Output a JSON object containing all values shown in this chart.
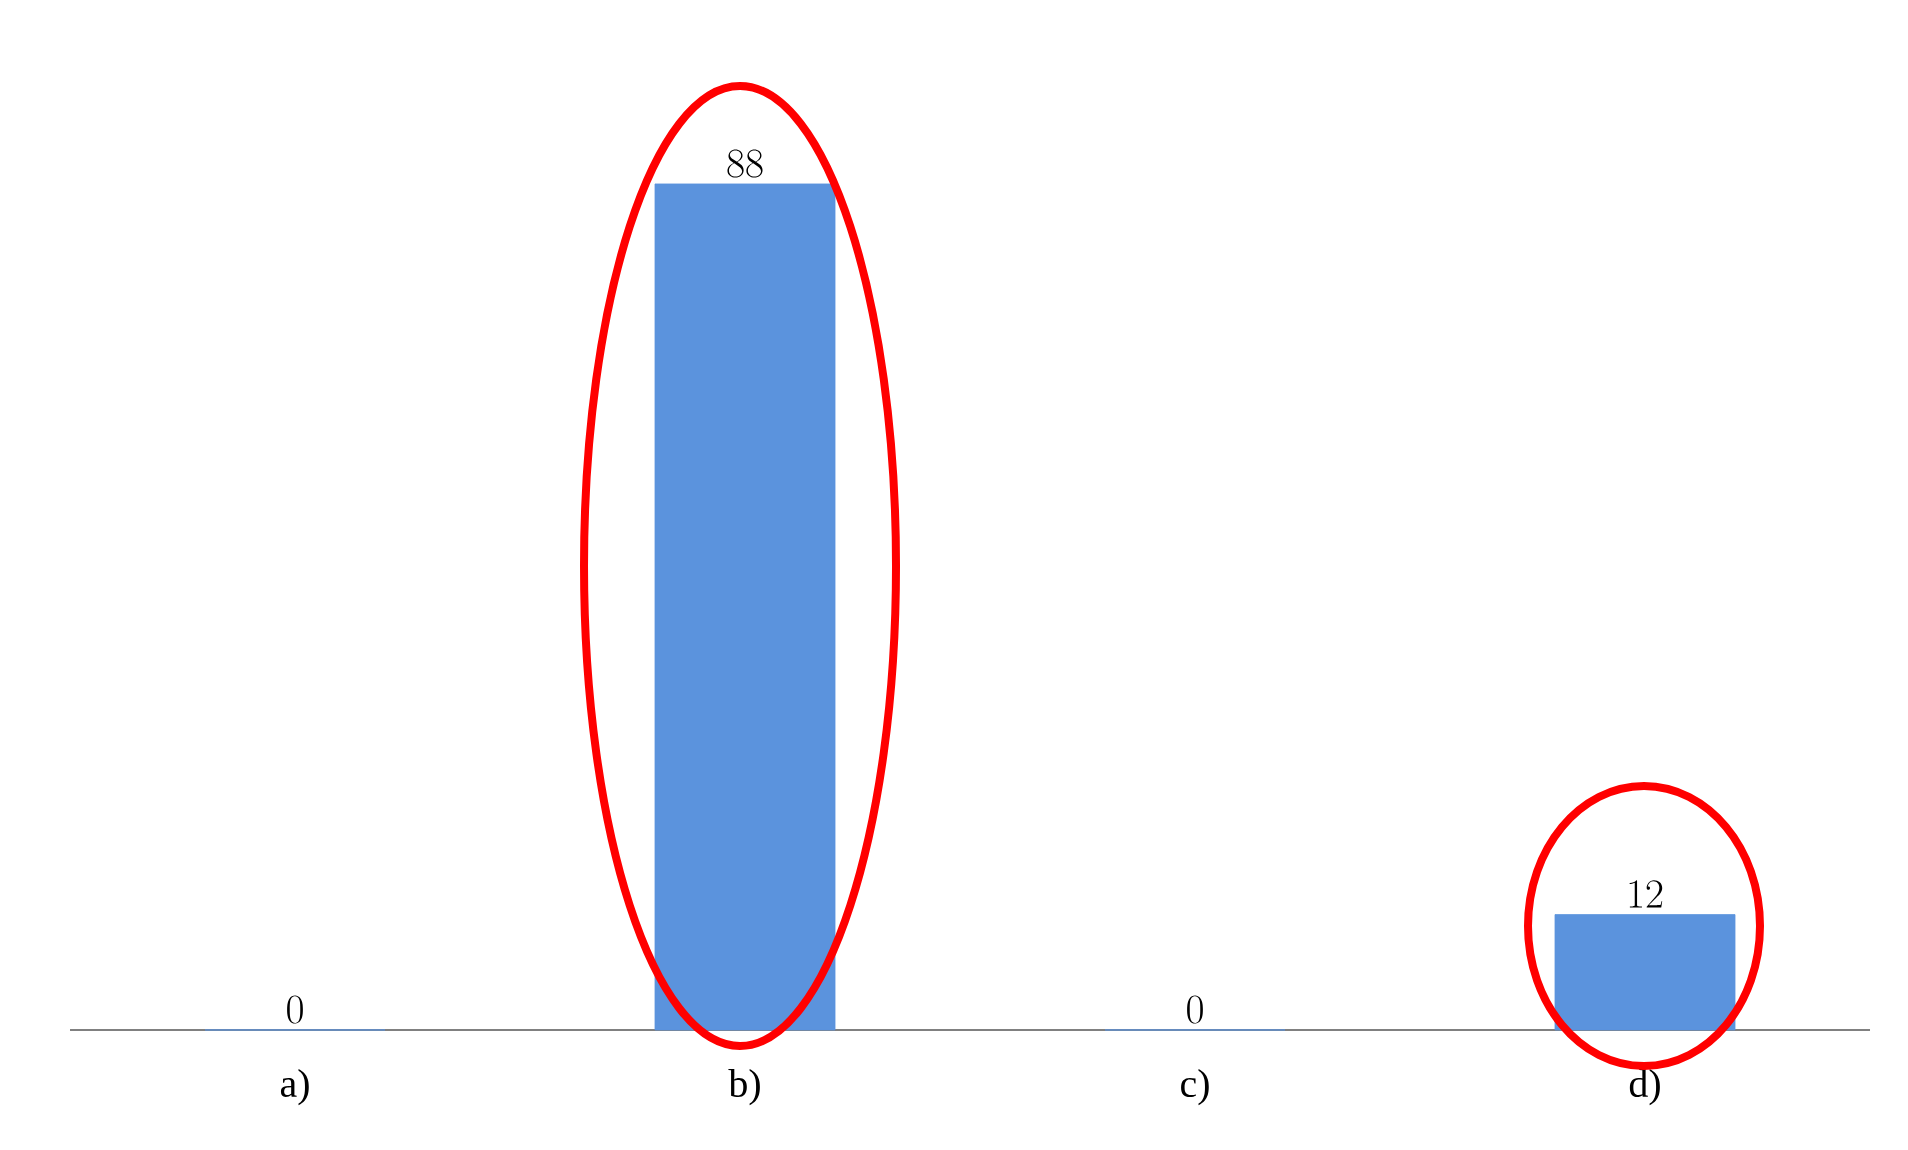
{
  "chart_data": {
    "type": "bar",
    "categories": [
      "a)",
      "b)",
      "c)",
      "d)"
    ],
    "values": [
      0,
      88,
      0,
      12
    ],
    "color": "#5b93dd",
    "data_labels": true
  }
}
